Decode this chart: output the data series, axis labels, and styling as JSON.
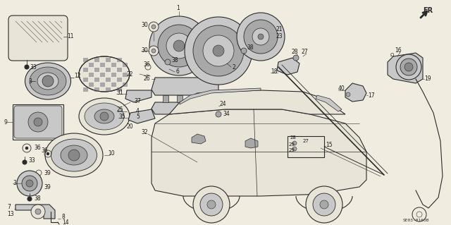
{
  "bg_color": "#f0ece0",
  "fig_width": 6.4,
  "fig_height": 3.19,
  "dpi": 100,
  "diagram_code": "SE03-8160B",
  "lc": "#2a2a2a",
  "lw": 0.8
}
